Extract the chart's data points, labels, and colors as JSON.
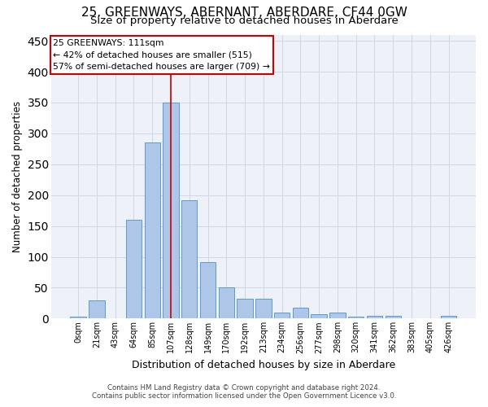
{
  "title": "25, GREENWAYS, ABERNANT, ABERDARE, CF44 0GW",
  "subtitle": "Size of property relative to detached houses in Aberdare",
  "xlabel": "Distribution of detached houses by size in Aberdare",
  "ylabel": "Number of detached properties",
  "bar_labels": [
    "0sqm",
    "21sqm",
    "43sqm",
    "64sqm",
    "85sqm",
    "107sqm",
    "128sqm",
    "149sqm",
    "170sqm",
    "192sqm",
    "213sqm",
    "234sqm",
    "256sqm",
    "277sqm",
    "298sqm",
    "320sqm",
    "341sqm",
    "362sqm",
    "383sqm",
    "405sqm",
    "426sqm"
  ],
  "bar_values": [
    3,
    30,
    0,
    160,
    285,
    350,
    192,
    92,
    50,
    32,
    32,
    10,
    17,
    7,
    10,
    3,
    5,
    5,
    1,
    1,
    5
  ],
  "bar_color": "#aec6e8",
  "bar_edge_color": "#5b9bd5",
  "grid_color": "#d0d8e8",
  "bg_color": "#eef2f8",
  "vline_x_index": 5,
  "vline_color": "#cc0000",
  "annotation_line1": "25 GREENWAYS: 111sqm",
  "annotation_line2": "← 42% of detached houses are smaller (515)",
  "annotation_line3": "57% of semi-detached houses are larger (709) →",
  "annotation_box_color": "#ffffff",
  "annotation_box_edge": "#cc0000",
  "footer_line1": "Contains HM Land Registry data © Crown copyright and database right 2024.",
  "footer_line2": "Contains public sector information licensed under the Open Government Licence v3.0.",
  "ylim": [
    0,
    460
  ],
  "title_fontsize": 11,
  "subtitle_fontsize": 9.5
}
